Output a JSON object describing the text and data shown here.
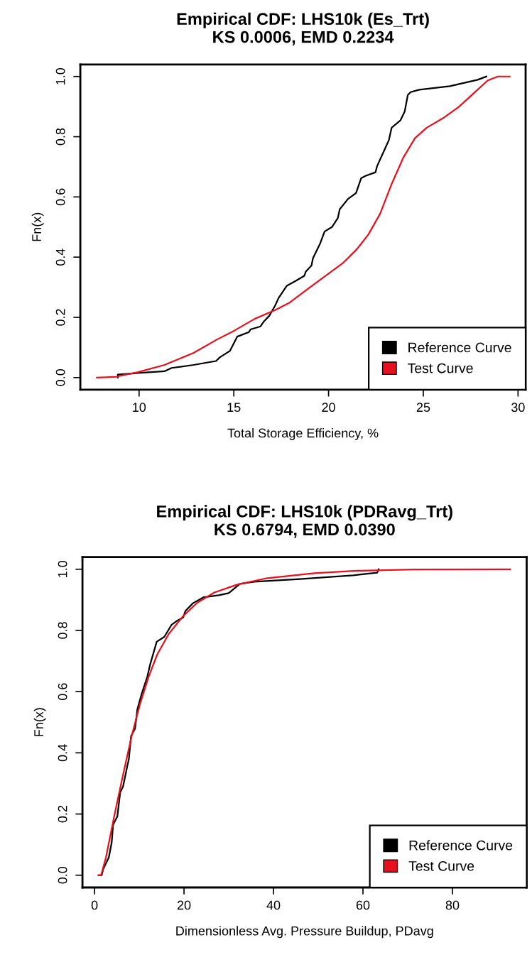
{
  "chart_data": [
    {
      "type": "line",
      "title": "Empirical CDF: LHS10k (Es_Trt)\nKS 0.0006, EMD 0.2234",
      "xlabel": "Total Storage Efficiency, %",
      "ylabel": "Fn(x)",
      "xlim": [
        6.9,
        30.4
      ],
      "ylim": [
        -0.04,
        1.04
      ],
      "xticks": [
        10,
        15,
        20,
        25,
        30
      ],
      "yticks": [
        {
          "value": 0,
          "label": "0.0"
        },
        {
          "value": 0.2,
          "label": "0.2"
        },
        {
          "value": 0.4,
          "label": "0.4"
        },
        {
          "value": 0.6,
          "label": "0.6"
        },
        {
          "value": 0.8,
          "label": "0.8"
        },
        {
          "value": 1,
          "label": "1.0"
        }
      ],
      "legend": "bottom right",
      "grid": false,
      "series": [
        {
          "name": "Reference Curve",
          "color": "#000000",
          "x": [
            8.88,
            8.88,
            9.95,
            11.34,
            11.72,
            12.88,
            14.06,
            14.26,
            14.8,
            15.18,
            15.8,
            15.88,
            16.41,
            16.57,
            16.87,
            17.18,
            17.36,
            17.8,
            18.26,
            18.72,
            18.8,
            19.1,
            19.18,
            19.56,
            19.79,
            20.18,
            20.49,
            20.59,
            21.02,
            21.45,
            21.72,
            21.95,
            22.48,
            22.56,
            23.02,
            23.18,
            23.33,
            23.79,
            24.02,
            24.18,
            24.33,
            24.79,
            26.4,
            27.87,
            28.33
          ],
          "values": [
            0,
            0.01,
            0.015,
            0.021,
            0.032,
            0.042,
            0.055,
            0.067,
            0.089,
            0.136,
            0.151,
            0.16,
            0.17,
            0.185,
            0.205,
            0.239,
            0.264,
            0.305,
            0.321,
            0.338,
            0.352,
            0.372,
            0.397,
            0.446,
            0.485,
            0.5,
            0.53,
            0.559,
            0.593,
            0.613,
            0.662,
            0.67,
            0.682,
            0.702,
            0.766,
            0.788,
            0.83,
            0.854,
            0.884,
            0.938,
            0.948,
            0.956,
            0.968,
            0.989,
            1.0
          ]
        },
        {
          "name": "Test Curve",
          "color": "#e8101e",
          "x": [
            7.77,
            8.72,
            9.95,
            11.34,
            12.88,
            14.1,
            15.03,
            16.1,
            17.18,
            17.95,
            18.87,
            19.95,
            20.79,
            21.49,
            22.1,
            22.72,
            23.33,
            23.95,
            24.56,
            25.18,
            26.1,
            26.87,
            27.64,
            28.4,
            28.94,
            29.56
          ],
          "values": [
            0,
            0.002,
            0.018,
            0.042,
            0.082,
            0.126,
            0.156,
            0.195,
            0.224,
            0.249,
            0.293,
            0.343,
            0.382,
            0.426,
            0.475,
            0.544,
            0.643,
            0.731,
            0.795,
            0.83,
            0.864,
            0.899,
            0.943,
            0.987,
            1.0,
            1.0
          ]
        }
      ]
    },
    {
      "type": "line",
      "title": "Empirical CDF: LHS10k (PDRavg_Trt)\nKS 0.6794, EMD 0.0390",
      "xlabel": "Dimensionless Avg. Pressure Buildup, PDavg",
      "ylabel": "Fn(x)",
      "xlim": [
        -2.7,
        96.6
      ],
      "ylim": [
        -0.04,
        1.04
      ],
      "xticks": [
        0,
        20,
        40,
        60,
        80
      ],
      "yticks": [
        {
          "value": 0,
          "label": "0.0"
        },
        {
          "value": 0.2,
          "label": "0.2"
        },
        {
          "value": 0.4,
          "label": "0.4"
        },
        {
          "value": 0.6,
          "label": "0.6"
        },
        {
          "value": 0.8,
          "label": "0.8"
        },
        {
          "value": 1,
          "label": "1.0"
        }
      ],
      "legend": "bottom right",
      "grid": false,
      "series": [
        {
          "name": "Reference Curve",
          "color": "#000000",
          "x": [
            0.96,
            1.6,
            1.91,
            3.19,
            3.83,
            4.15,
            5.1,
            5.74,
            6.38,
            7.34,
            7.66,
            8.17,
            9.06,
            9.57,
            10.5,
            11.8,
            12.4,
            13.9,
            15.6,
            17.2,
            18.5,
            19.8,
            20.3,
            22.0,
            24.3,
            27.8,
            30.0,
            32.5,
            35.7,
            45.9,
            57.8,
            63.2,
            63.5
          ],
          "values": [
            0,
            0,
            0.019,
            0.058,
            0.106,
            0.165,
            0.192,
            0.271,
            0.29,
            0.358,
            0.378,
            0.455,
            0.479,
            0.542,
            0.591,
            0.649,
            0.687,
            0.763,
            0.779,
            0.818,
            0.832,
            0.842,
            0.863,
            0.889,
            0.908,
            0.915,
            0.922,
            0.952,
            0.959,
            0.968,
            0.98,
            0.989,
            1.0
          ]
        },
        {
          "name": "Test Curve",
          "color": "#e8101e",
          "x": [
            0.83,
            1.47,
            2.55,
            4.47,
            6.38,
            8.3,
            10.2,
            12.1,
            14.0,
            16.6,
            19.8,
            23.0,
            26.8,
            31.9,
            38.3,
            49.1,
            58.7,
            71.5,
            92.9
          ],
          "values": [
            0,
            0,
            0.058,
            0.198,
            0.329,
            0.455,
            0.561,
            0.649,
            0.721,
            0.789,
            0.847,
            0.891,
            0.924,
            0.95,
            0.97,
            0.987,
            0.995,
            0.999,
            1.0
          ]
        }
      ]
    }
  ]
}
